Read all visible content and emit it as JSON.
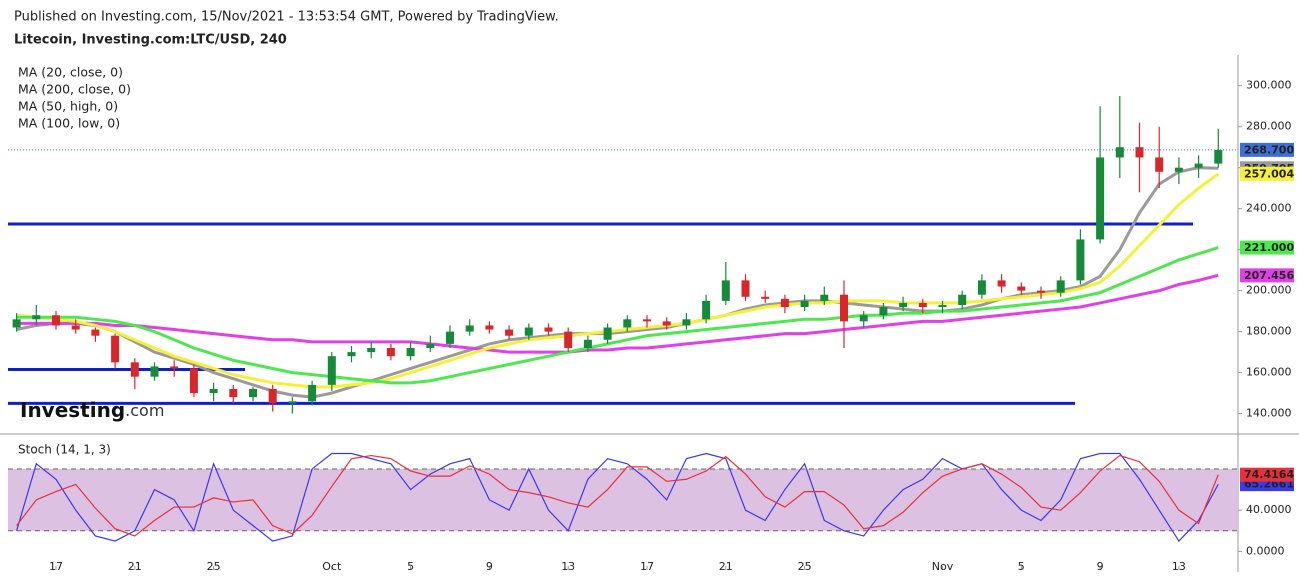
{
  "chart_data": [
    {
      "type": "candlestick",
      "subtitle": "Published on Investing.com, 15/Nov/2021 - 13:53:54 GMT, Powered by TradingView.",
      "title": "Litecoin, Investing.com:LTC/USD, 240",
      "open": [
        182,
        186,
        188,
        183,
        181,
        178,
        165,
        158,
        163,
        162,
        150,
        152,
        148,
        152,
        145,
        146,
        154,
        168,
        170,
        172,
        168,
        172,
        174,
        180,
        183,
        181,
        178,
        182,
        180,
        172,
        176,
        182,
        186,
        185,
        183,
        186,
        195,
        205,
        197,
        196,
        192,
        195,
        198,
        185,
        188,
        192,
        194,
        192,
        193,
        198,
        205,
        202,
        200,
        199,
        205,
        225,
        265,
        270,
        265,
        258,
        260,
        262
      ],
      "high": [
        189,
        193,
        190,
        186,
        182,
        179,
        167,
        165,
        166,
        164,
        155,
        154,
        153,
        154,
        148,
        156,
        170,
        173,
        175,
        174,
        175,
        178,
        183,
        186,
        185,
        183,
        184,
        184,
        182,
        178,
        184,
        188,
        188,
        187,
        189,
        198,
        214,
        208,
        200,
        198,
        198,
        202,
        205,
        190,
        194,
        197,
        196,
        195,
        200,
        208,
        208,
        204,
        202,
        207,
        230,
        290,
        295,
        282,
        280,
        265,
        266,
        279
      ],
      "low": [
        180,
        183,
        181,
        179,
        175,
        162,
        152,
        156,
        158,
        148,
        146,
        145,
        146,
        141,
        140,
        144,
        151,
        165,
        167,
        166,
        166,
        170,
        172,
        178,
        179,
        176,
        176,
        178,
        170,
        170,
        174,
        180,
        182,
        181,
        181,
        184,
        193,
        195,
        194,
        189,
        190,
        193,
        172,
        182,
        186,
        190,
        189,
        189,
        191,
        196,
        199,
        198,
        196,
        197,
        203,
        223,
        255,
        248,
        250,
        252,
        255,
        260
      ],
      "close": [
        186,
        188,
        183,
        181,
        178,
        165,
        158,
        163,
        162,
        150,
        152,
        148,
        152,
        145,
        146,
        154,
        168,
        170,
        172,
        168,
        172,
        174,
        180,
        183,
        181,
        178,
        182,
        180,
        172,
        176,
        182,
        186,
        185,
        183,
        186,
        195,
        205,
        197,
        196,
        192,
        195,
        198,
        185,
        188,
        192,
        194,
        192,
        193,
        198,
        205,
        202,
        200,
        199,
        205,
        225,
        265,
        270,
        265,
        258,
        260,
        262,
        268.7
      ],
      "last_close_label": "268.700",
      "colors": {
        "up": "#178a3a",
        "down": "#d9262b",
        "last": "#3d6fd6"
      },
      "series": [
        {
          "name": "MA (20, close, 0)",
          "color": "#9a9a9a",
          "last_label": "259.705",
          "values": [
            181,
            183,
            184,
            184,
            183,
            180,
            175,
            170,
            167,
            164,
            160,
            157,
            154,
            151,
            149,
            148,
            150,
            153,
            156,
            159,
            162,
            165,
            168,
            171,
            174,
            176,
            177,
            178,
            179,
            179,
            179,
            180,
            181,
            182,
            184,
            186,
            188,
            191,
            193,
            194,
            195,
            195,
            194,
            193,
            192,
            191,
            190,
            190,
            191,
            193,
            196,
            198,
            199,
            200,
            202,
            207,
            220,
            238,
            252,
            258,
            260,
            259.705
          ]
        },
        {
          "name": "MA (200, close, 0)",
          "color": "#e040e6",
          "last_label": "207.456",
          "values": [
            184,
            184,
            184,
            184,
            184,
            183,
            183,
            182,
            181,
            180,
            179,
            178,
            177,
            176,
            176,
            175,
            175,
            175,
            175,
            175,
            175,
            174,
            173,
            172,
            171,
            170,
            170,
            170,
            170,
            171,
            171,
            172,
            172,
            173,
            174,
            175,
            176,
            177,
            178,
            179,
            179,
            180,
            181,
            182,
            183,
            184,
            185,
            185,
            186,
            187,
            188,
            189,
            190,
            191,
            192,
            194,
            196,
            198,
            200,
            203,
            205,
            207.456
          ]
        },
        {
          "name": "MA (50, high, 0)",
          "color": "#f5f03a",
          "last_label": "257.004",
          "values": [
            188,
            187,
            186,
            185,
            183,
            180,
            176,
            172,
            168,
            165,
            162,
            159,
            157,
            155,
            154,
            153,
            153,
            154,
            155,
            157,
            160,
            163,
            166,
            169,
            172,
            174,
            176,
            177,
            178,
            179,
            180,
            181,
            182,
            183,
            184,
            186,
            188,
            190,
            192,
            193,
            194,
            194,
            195,
            195,
            195,
            194,
            194,
            194,
            194,
            195,
            196,
            197,
            198,
            199,
            201,
            204,
            212,
            222,
            232,
            242,
            250,
            257.004
          ]
        },
        {
          "name": "MA (100, low, 0)",
          "color": "#4ee84e",
          "last_label": "221.000",
          "values": [
            187,
            187,
            187,
            187,
            186,
            185,
            183,
            180,
            176,
            172,
            169,
            166,
            164,
            162,
            160,
            159,
            158,
            157,
            156,
            155,
            155,
            156,
            158,
            160,
            162,
            164,
            166,
            168,
            170,
            172,
            174,
            176,
            178,
            179,
            180,
            181,
            182,
            183,
            184,
            185,
            186,
            186,
            187,
            188,
            188,
            189,
            189,
            190,
            190,
            191,
            192,
            193,
            194,
            195,
            197,
            199,
            203,
            207,
            211,
            215,
            218,
            221.0
          ]
        }
      ],
      "ylim": [
        131,
        315
      ],
      "yticks": [
        {
          "value": 140,
          "label": "140.000"
        },
        {
          "value": 160,
          "label": "160.000"
        },
        {
          "value": 180,
          "label": "180.000"
        },
        {
          "value": 200,
          "label": "200.000"
        },
        {
          "value": 220,
          "label": "220.000"
        },
        {
          "value": 240,
          "label": "240.000"
        },
        {
          "value": 260,
          "label": "260.000"
        },
        {
          "value": 280,
          "label": "280.000"
        },
        {
          "value": 300,
          "label": "300.000"
        }
      ],
      "support_lines": [
        232.5,
        161.5,
        145
      ],
      "support_color": "#1020c8",
      "watermark": [
        "Investing",
        ".com"
      ]
    },
    {
      "type": "line",
      "title": "Stoch (14, 1, 3)",
      "categories": [
        null,
        null,
        "17",
        null,
        null,
        null,
        "21",
        null,
        null,
        null,
        "25",
        null,
        null,
        null,
        null,
        null,
        "Oct",
        null,
        null,
        null,
        "5",
        null,
        null,
        null,
        "9",
        null,
        null,
        null,
        "13",
        null,
        null,
        null,
        "17",
        null,
        null,
        null,
        "21",
        null,
        null,
        null,
        "25",
        null,
        null,
        null,
        null,
        null,
        null,
        "Nov",
        null,
        null,
        null,
        "5",
        null,
        null,
        null,
        "9",
        null,
        null,
        null,
        "13",
        null,
        null
      ],
      "series": [
        {
          "color": "#3a3ae8",
          "last_label": "65.2661",
          "values": [
            20,
            85,
            70,
            40,
            15,
            10,
            20,
            60,
            50,
            20,
            85,
            40,
            25,
            10,
            15,
            80,
            95,
            95,
            90,
            85,
            60,
            75,
            85,
            90,
            50,
            40,
            80,
            40,
            20,
            70,
            90,
            85,
            70,
            50,
            90,
            95,
            90,
            40,
            30,
            60,
            85,
            30,
            20,
            15,
            40,
            60,
            70,
            90,
            80,
            85,
            60,
            40,
            30,
            50,
            90,
            95,
            95,
            70,
            40,
            10,
            30,
            65.2661
          ]
        },
        {
          "color": "#e8303a",
          "last_label": "74.4164",
          "values": [
            25,
            50,
            58,
            65,
            42,
            22,
            15,
            30,
            43,
            43,
            52,
            48,
            50,
            25,
            17,
            35,
            63,
            90,
            93,
            90,
            78,
            73,
            73,
            83,
            75,
            60,
            57,
            53,
            47,
            43,
            60,
            82,
            82,
            68,
            70,
            78,
            92,
            75,
            53,
            43,
            58,
            58,
            45,
            22,
            25,
            38,
            57,
            73,
            80,
            85,
            75,
            62,
            43,
            40,
            57,
            78,
            93,
            87,
            68,
            40,
            27,
            74.4164
          ]
        }
      ],
      "bands": [
        20,
        80
      ],
      "band_color": "#dcc1e2",
      "ylim": [
        -20,
        111
      ],
      "yticks": [
        {
          "value": 0,
          "label": "0.0000"
        },
        {
          "value": 40,
          "label": "40.0000"
        }
      ]
    }
  ]
}
